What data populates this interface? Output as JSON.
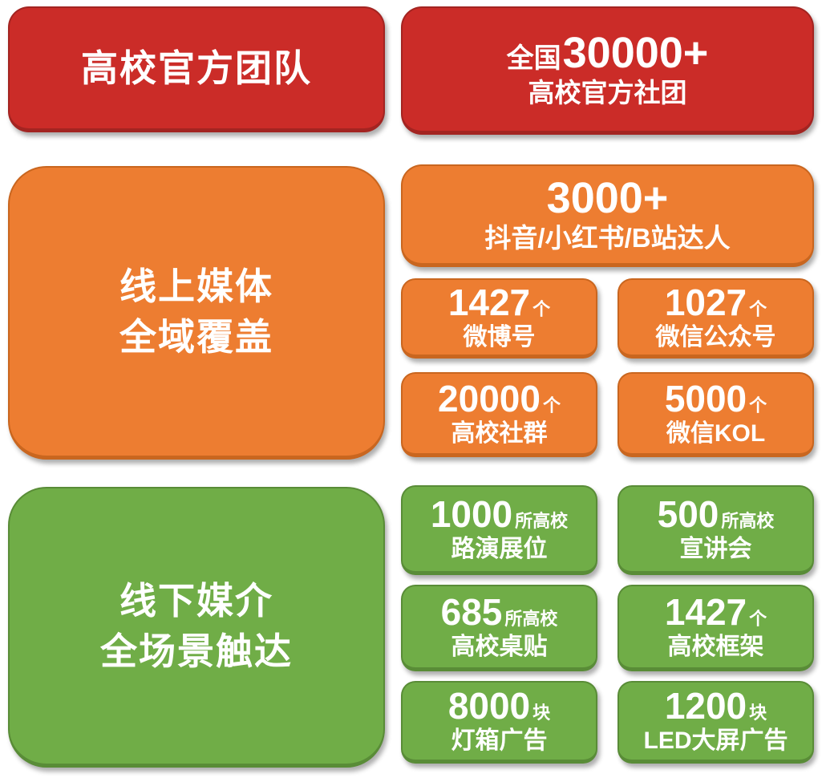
{
  "colors": {
    "red": "#cb2c28",
    "red_edge": "#a32421",
    "orange": "#ed7d31",
    "orange_edge": "#c9661f",
    "green": "#70ad47",
    "green_edge": "#598c37",
    "text": "#ffffff",
    "background": "#ffffff"
  },
  "sections": [
    {
      "id": "official-teams",
      "color": "red",
      "title_lines": [
        "高校官方团队"
      ],
      "stats": [
        {
          "prefix": "全国",
          "number": "30000+",
          "label": "高校官方社团"
        }
      ]
    },
    {
      "id": "online-media",
      "color": "orange",
      "title_lines": [
        "线上媒体",
        "全域覆盖"
      ],
      "stats": [
        {
          "number": "3000+",
          "label": "抖音/小红书/B站达人"
        },
        {
          "number": "1427",
          "suffix": "个",
          "label": "微博号"
        },
        {
          "number": "1027",
          "suffix": "个",
          "label": "微信公众号"
        },
        {
          "number": "20000",
          "suffix": "个",
          "label": "高校社群"
        },
        {
          "number": "5000",
          "suffix": "个",
          "label": "微信KOL"
        }
      ]
    },
    {
      "id": "offline-media",
      "color": "green",
      "title_lines": [
        "线下媒介",
        "全场景触达"
      ],
      "stats": [
        {
          "number": "1000",
          "suffix": "所高校",
          "label": "路演展位"
        },
        {
          "number": "500",
          "suffix": "所高校",
          "label": "宣讲会"
        },
        {
          "number": "685",
          "suffix": "所高校",
          "label": "高校桌贴"
        },
        {
          "number": "1427",
          "suffix": "个",
          "label": "高校框架"
        },
        {
          "number": "8000",
          "suffix": "块",
          "label": "灯箱广告"
        },
        {
          "number": "1200",
          "suffix": "块",
          "label": "LED大屏广告"
        }
      ]
    }
  ]
}
